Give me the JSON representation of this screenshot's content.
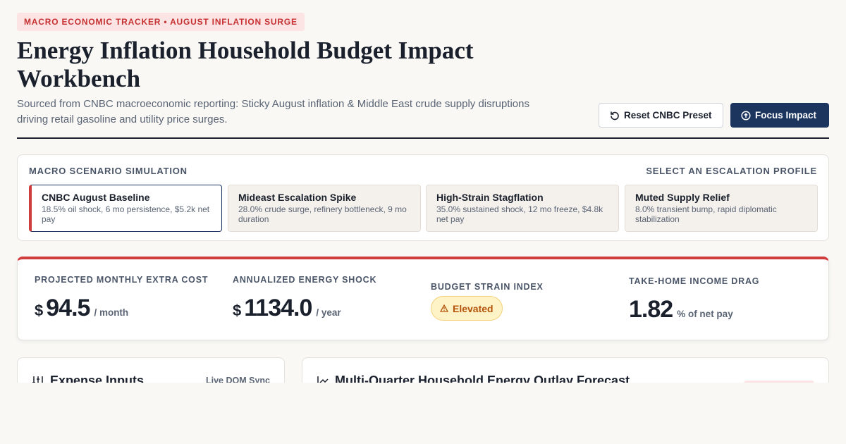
{
  "header": {
    "badge": "MACRO ECONOMIC TRACKER • AUGUST INFLATION SURGE",
    "title": "Energy Inflation Household Budget Impact Workbench",
    "subtitle": "Sourced from CNBC macroeconomic reporting: Sticky August inflation & Middle East crude supply disruptions driving retail gasoline and utility price surges.",
    "buttons": [
      "Reset CNBC Preset",
      "Focus Impact"
    ]
  },
  "scenarios": {
    "title": "MACRO SCENARIO SIMULATION",
    "hint": "SELECT AN ESCALATION PROFILE",
    "options": [
      {
        "name": "CNBC August Baseline",
        "desc": "18.5% oil shock, 6 mo persistence, $5.2k net pay"
      },
      {
        "name": "Mideast Escalation Spike",
        "desc": "28.0% crude surge, refinery bottleneck, 9 mo duration"
      },
      {
        "name": "High-Strain Stagflation",
        "desc": "35.0% sustained shock, 12 mo freeze, $4.8k net pay"
      },
      {
        "name": "Muted Supply Relief",
        "desc": "8.0% transient bump, rapid diplomatic stabilization"
      }
    ]
  },
  "metrics": [
    {
      "label": "PROJECTED MONTHLY EXTRA COST",
      "prefix": "$",
      "value": "94.5",
      "unit": "/ month"
    },
    {
      "label": "ANNUALIZED ENERGY SHOCK",
      "prefix": "$",
      "value": "1134.0",
      "unit": "/ year"
    },
    {
      "label": "BUDGET STRAIN INDEX",
      "status": "Elevated"
    },
    {
      "label": "TAKE-HOME INCOME DRAG",
      "value": "1.82",
      "unit": "% of net pay"
    }
  ],
  "panels": {
    "inputs": {
      "title": "Expense Inputs",
      "tag": "Live DOM Sync"
    },
    "forecast": {
      "title": "Multi-Quarter Household Energy Outlay Forecast"
    }
  }
}
